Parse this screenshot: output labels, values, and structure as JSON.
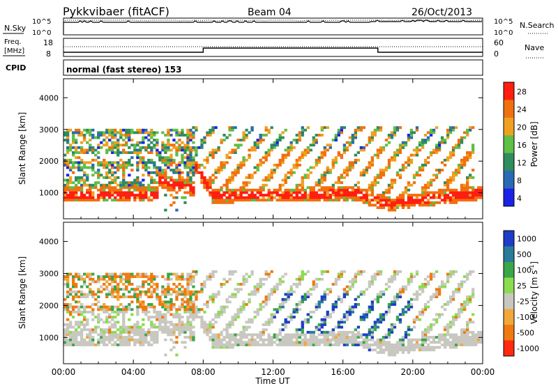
{
  "header": {
    "station": "Pykkvibaer (fitACF)",
    "beam": "Beam 04",
    "date": "26/Oct/2013"
  },
  "panels": {
    "nsky": {
      "label": "N.Sky",
      "ticks": [
        "10^5",
        "10^0"
      ],
      "right_label": "N.Search",
      "right_ticks": [
        "10^5",
        "10^0"
      ]
    },
    "freq": {
      "label_line1": "Freq.",
      "label_line2": "[MHz]",
      "ticks": [
        "18",
        "8"
      ],
      "right_label": "Nave",
      "right_ticks": [
        "60",
        "0"
      ]
    },
    "cpid": {
      "label": "CPID",
      "text": "normal (fast stereo) 153"
    }
  },
  "chart_data": [
    {
      "type": "heatmap",
      "name": "power",
      "ylabel": "Slant Range [km]",
      "ylim": [
        180,
        4600
      ],
      "yticks": [
        "1000",
        "2000",
        "3000",
        "4000"
      ],
      "xlim_hours": [
        0,
        24
      ],
      "colorbar": {
        "label": "Power [dB]",
        "ticks": [
          "4",
          "8",
          "12",
          "16",
          "20",
          "24",
          "28"
        ],
        "colors": [
          "#1a22e6",
          "#2a6ab4",
          "#2f8c5c",
          "#5fbf46",
          "#f0a020",
          "#f07010",
          "#ff1e10"
        ]
      }
    },
    {
      "type": "heatmap",
      "name": "velocity",
      "ylabel": "Slant Range [km]",
      "ylim": [
        180,
        4600
      ],
      "yticks": [
        "1000",
        "2000",
        "3000",
        "4000"
      ],
      "xlim_hours": [
        0,
        24
      ],
      "colorbar": {
        "label": "Velocity [m s",
        "label_sup": "-1",
        "label_end": "]",
        "ticks": [
          "1000",
          "500",
          "100",
          "25",
          "-25",
          "-100",
          "-500",
          "-1000"
        ],
        "colors": [
          "#1e3cc8",
          "#2a7a9a",
          "#3aa64a",
          "#8cdc50",
          "#c8c8c0",
          "#f0a83a",
          "#f07a10",
          "#ff2a10"
        ]
      }
    }
  ],
  "xaxis": {
    "ticks": [
      "00:00",
      "04:00",
      "08:00",
      "12:00",
      "16:00",
      "20:00",
      "00:00"
    ],
    "label": "Time UT"
  }
}
